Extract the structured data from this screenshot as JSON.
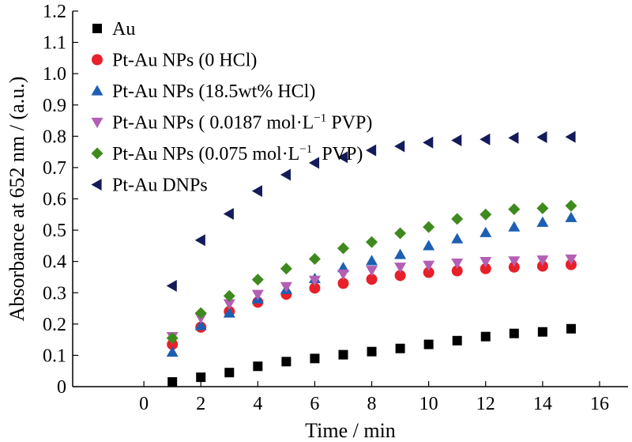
{
  "chart_data": {
    "type": "scatter",
    "xlabel": "Time / min",
    "ylabel": "Absorbance at 652 nm / (a.u.)",
    "xlim": [
      -2.5,
      17
    ],
    "ylim": [
      0,
      1.2
    ],
    "x_ticks": [
      "0",
      "2",
      "4",
      "6",
      "8",
      "10",
      "12",
      "14",
      "16"
    ],
    "y_ticks": [
      "0",
      "0.1",
      "0.2",
      "0.3",
      "0.4",
      "0.5",
      "0.6",
      "0.7",
      "0.8",
      "0.9",
      "1.0",
      "1.1",
      "1.2"
    ],
    "legend_position": "top-left",
    "x": [
      1,
      2,
      3,
      4,
      5,
      6,
      7,
      8,
      9,
      10,
      11,
      12,
      13,
      14,
      15
    ],
    "series": [
      {
        "name": "Au",
        "marker": "square",
        "color": "#000000",
        "values": [
          0.015,
          0.03,
          0.045,
          0.065,
          0.08,
          0.09,
          0.102,
          0.112,
          0.122,
          0.135,
          0.147,
          0.16,
          0.17,
          0.175,
          0.185
        ]
      },
      {
        "name": "Pt-Au NPs (0 HCl)",
        "marker": "circle",
        "color": "#e8202a",
        "values": [
          0.135,
          0.19,
          0.24,
          0.27,
          0.295,
          0.315,
          0.33,
          0.343,
          0.355,
          0.365,
          0.37,
          0.377,
          0.382,
          0.385,
          0.39
        ]
      },
      {
        "name": "Pt-Au NPs (18.5wt% HCl)",
        "marker": "triangle-up",
        "color": "#1c5fb3",
        "values": [
          0.11,
          0.195,
          0.235,
          0.28,
          0.31,
          0.345,
          0.38,
          0.402,
          0.422,
          0.45,
          0.472,
          0.492,
          0.51,
          0.525,
          0.54
        ]
      },
      {
        "name": "Pt-Au NPs ( 0.0187 mol·L",
        "name_sup": "−1",
        "name_tail": " PVP)",
        "marker": "triangle-down",
        "color": "#b35fb3",
        "values": [
          0.16,
          0.22,
          0.265,
          0.295,
          0.32,
          0.34,
          0.36,
          0.372,
          0.382,
          0.388,
          0.395,
          0.4,
          0.402,
          0.405,
          0.408
        ]
      },
      {
        "name": "Pt-Au NPs (0.075 mol·L",
        "name_sup": "−1",
        "name_tail": "  PVP)",
        "marker": "diamond",
        "color": "#3f8a1f",
        "values": [
          0.155,
          0.235,
          0.29,
          0.342,
          0.377,
          0.408,
          0.442,
          0.462,
          0.49,
          0.51,
          0.536,
          0.55,
          0.567,
          0.57,
          0.578
        ]
      },
      {
        "name": "Pt-Au DNPs",
        "marker": "triangle-left",
        "color": "#141b5a",
        "values": [
          0.322,
          0.468,
          0.552,
          0.625,
          0.677,
          0.715,
          0.733,
          0.755,
          0.768,
          0.78,
          0.787,
          0.79,
          0.795,
          0.797,
          0.798
        ]
      }
    ]
  }
}
